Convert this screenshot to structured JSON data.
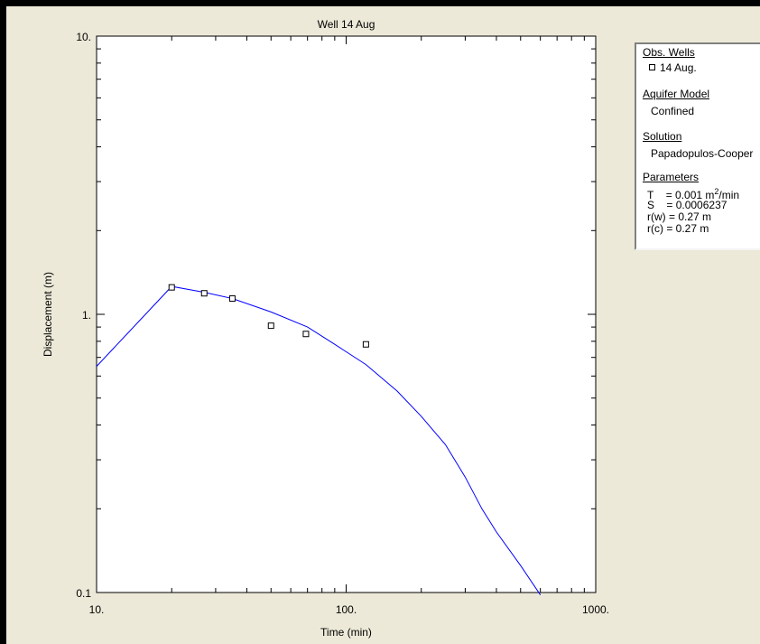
{
  "chart_data": {
    "type": "scatter",
    "title": "Well 14 Aug",
    "xlabel": "Time (min)",
    "ylabel": "Displacement (m)",
    "xscale": "log",
    "yscale": "log",
    "xlim": [
      10,
      1000
    ],
    "ylim": [
      0.1,
      10
    ],
    "x_tick_labels": [
      {
        "value": 10,
        "label": "10."
      },
      {
        "value": 100,
        "label": "100."
      },
      {
        "value": 1000,
        "label": "1000."
      }
    ],
    "y_tick_labels": [
      {
        "value": 10,
        "label": "10."
      },
      {
        "value": 1,
        "label": "1."
      },
      {
        "value": 0.1,
        "label": "0.1"
      }
    ],
    "observations": {
      "name": "14 Aug.",
      "x": [
        20,
        27,
        35,
        50,
        69,
        120
      ],
      "y": [
        1.25,
        1.19,
        1.14,
        0.91,
        0.85,
        0.78
      ]
    },
    "fitted_curve": {
      "x": [
        10,
        20,
        27,
        35,
        50,
        70,
        90,
        120,
        160,
        200,
        250,
        300,
        350,
        400,
        500,
        600
      ],
      "y": [
        0.65,
        1.26,
        1.2,
        1.14,
        1.02,
        0.9,
        0.78,
        0.66,
        0.53,
        0.43,
        0.34,
        0.26,
        0.2,
        0.165,
        0.125,
        0.098
      ]
    },
    "colors": {
      "curve": "#0000ff",
      "markers": "#000000",
      "plot_bg": "#ffffff",
      "frame_bg": "#ece9d8"
    }
  },
  "legend": {
    "obs_wells_heading": "Obs. Wells",
    "obs_well_name": "14 Aug.",
    "aquifer_model_heading": "Aquifer Model",
    "aquifer_model": "Confined",
    "solution_heading": "Solution",
    "solution": "Papadopulos-Cooper",
    "parameters_heading": "Parameters",
    "param_T_label": "T",
    "param_T_value": "= 0.001 m",
    "param_T_sup": "2",
    "param_T_unit": "/min",
    "param_S_label": "S",
    "param_S_value": "= 0.0006237",
    "param_rw": "r(w) = 0.27 m",
    "param_rc": "r(c) = 0.27 m"
  }
}
